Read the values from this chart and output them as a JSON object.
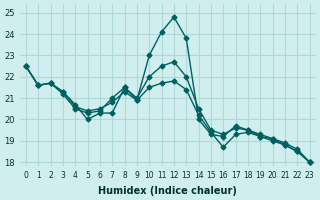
{
  "xlabel": "Humidex (Indice chaleur)",
  "ylabel": "",
  "xlim": [
    -0.5,
    23.5
  ],
  "ylim": [
    17.8,
    25.4
  ],
  "yticks": [
    18,
    19,
    20,
    21,
    22,
    23,
    24,
    25
  ],
  "xticks": [
    0,
    1,
    2,
    3,
    4,
    5,
    6,
    7,
    8,
    9,
    10,
    11,
    12,
    13,
    14,
    15,
    16,
    17,
    18,
    19,
    20,
    21,
    22,
    23
  ],
  "bg_color": "#d0eeee",
  "grid_color": "#b0d8d8",
  "line_color": "#006060",
  "line1_x": [
    0,
    1,
    2,
    3,
    4,
    5,
    6,
    7,
    8,
    9,
    10,
    11,
    12,
    13,
    14,
    15,
    16,
    17,
    18,
    19,
    20,
    21,
    22,
    23
  ],
  "line1_y": [
    22.5,
    21.6,
    21.7,
    21.3,
    20.7,
    20.0,
    20.3,
    20.3,
    21.5,
    20.9,
    23.0,
    24.1,
    24.8,
    23.8,
    20.0,
    19.3,
    19.2,
    19.7,
    19.5,
    19.2,
    19.1,
    18.8,
    18.5,
    18.0
  ],
  "line2_x": [
    0,
    1,
    2,
    3,
    4,
    5,
    6,
    7,
    8,
    9,
    10,
    11,
    12,
    13,
    14,
    15,
    16,
    17,
    18,
    19,
    20,
    21,
    22,
    23
  ],
  "line2_y": [
    22.5,
    21.6,
    21.7,
    21.2,
    20.5,
    20.3,
    20.4,
    21.0,
    21.5,
    21.0,
    22.0,
    22.5,
    22.7,
    22.0,
    20.5,
    19.5,
    19.3,
    19.6,
    19.5,
    19.3,
    19.1,
    18.9,
    18.6,
    18.0
  ],
  "line3_x": [
    0,
    1,
    2,
    3,
    4,
    5,
    6,
    7,
    8,
    9,
    10,
    11,
    12,
    13,
    14,
    15,
    16,
    17,
    18,
    19,
    20,
    21,
    22,
    23
  ],
  "line3_y": [
    22.5,
    21.6,
    21.7,
    21.3,
    20.6,
    20.4,
    20.5,
    20.8,
    21.3,
    20.9,
    21.5,
    21.7,
    21.8,
    21.4,
    20.2,
    19.4,
    18.7,
    19.3,
    19.4,
    19.2,
    19.0,
    18.8,
    18.5,
    18.0
  ]
}
